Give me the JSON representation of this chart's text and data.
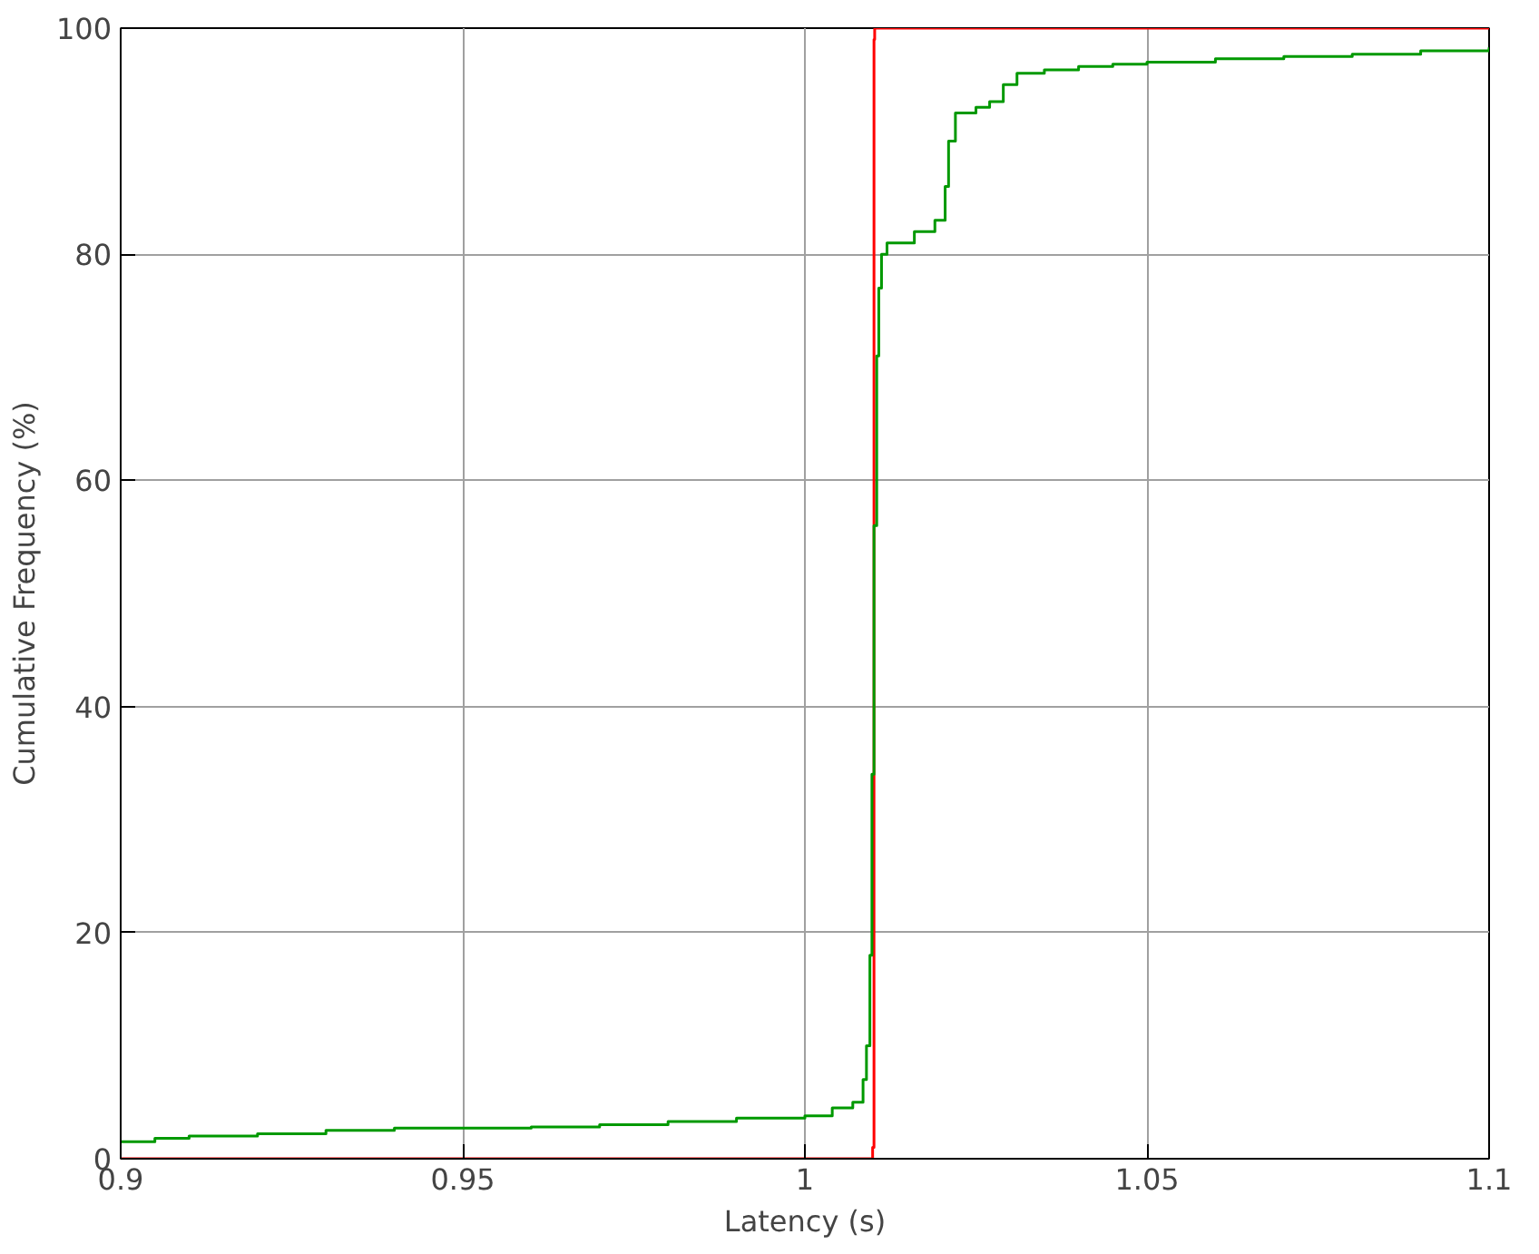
{
  "chart_data": {
    "type": "step",
    "xlabel": "Latency (s)",
    "ylabel": "Cumulative Frequency (%)",
    "xlim": [
      0.9,
      1.1
    ],
    "ylim": [
      0,
      100
    ],
    "xticks": [
      0.9,
      0.95,
      1,
      1.05,
      1.1
    ],
    "yticks": [
      0,
      20,
      40,
      60,
      80,
      100
    ],
    "grid": true,
    "series": [
      {
        "color": "#ff0000",
        "x": [
          0.9,
          1.0098,
          1.0099,
          1.0101,
          1.0102,
          1.1
        ],
        "values": [
          0,
          0,
          1,
          99,
          100,
          100
        ]
      },
      {
        "color": "#009900",
        "x": [
          0.9,
          0.905,
          0.91,
          0.92,
          0.93,
          0.94,
          0.96,
          0.97,
          0.98,
          0.99,
          1.0,
          1.004,
          1.007,
          1.0085,
          1.009,
          1.0095,
          1.0098,
          1.0101,
          1.0105,
          1.0108,
          1.0112,
          1.012,
          1.016,
          1.019,
          1.0205,
          1.021,
          1.022,
          1.025,
          1.027,
          1.029,
          1.031,
          1.035,
          1.04,
          1.045,
          1.05,
          1.06,
          1.07,
          1.08,
          1.09,
          1.1
        ],
        "values": [
          1.5,
          1.8,
          2.0,
          2.2,
          2.5,
          2.7,
          2.8,
          3.0,
          3.3,
          3.6,
          3.8,
          4.5,
          5,
          7,
          10,
          18,
          34,
          56,
          71,
          77,
          80,
          81,
          82,
          83,
          86,
          90,
          92.5,
          93,
          93.5,
          95,
          96,
          96.3,
          96.6,
          96.8,
          97,
          97.3,
          97.5,
          97.7,
          98,
          98.3
        ]
      }
    ]
  }
}
